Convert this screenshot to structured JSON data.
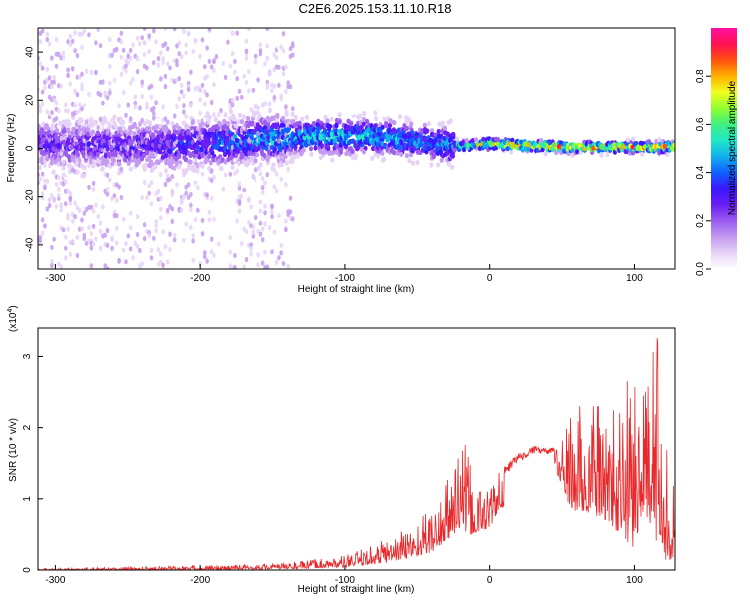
{
  "title": "C2E6.2025.153.11.10.R18",
  "colors": {
    "snr_line": "#e8282a",
    "colormap": [
      "#ffffff",
      "#e6d3f7",
      "#c49bf0",
      "#9b5bf0",
      "#6a1ef5",
      "#3a18ff",
      "#1060ff",
      "#10b0f0",
      "#20e8c8",
      "#40f080",
      "#90ff30",
      "#f0ff20",
      "#ffb000",
      "#ff5010",
      "#ff1050",
      "#ff10a0"
    ]
  },
  "chart_data": [
    {
      "type": "heatmap",
      "xlabel": "Height of straight line (km)",
      "ylabel": "Frequency (Hz)",
      "xlim": [
        -312,
        128
      ],
      "ylim": [
        -50,
        50
      ],
      "xticks": [
        -300,
        -200,
        -100,
        0,
        100
      ],
      "yticks": [
        -40,
        -20,
        0,
        20,
        40
      ],
      "colorbar": {
        "label": "Normalized spectral amplitude",
        "range": [
          0,
          1
        ],
        "ticks": [
          "0.0",
          "0.2",
          "0.4",
          "0.6",
          "0.8"
        ],
        "tick_values": [
          0,
          0.2,
          0.4,
          0.6,
          0.8
        ]
      },
      "ridge": {
        "x": [
          -312,
          -250,
          -200,
          -150,
          -120,
          -80,
          -50,
          -35,
          -20,
          0,
          30,
          60,
          100,
          128
        ],
        "center_freq_hz": [
          2,
          1,
          2,
          4,
          5,
          5,
          3,
          2,
          1,
          2,
          1,
          0.5,
          0.5,
          0.5
        ],
        "peak_amplitude": [
          0.33,
          0.35,
          0.42,
          0.55,
          0.58,
          0.58,
          0.52,
          0.5,
          0.65,
          0.9,
          0.92,
          0.93,
          0.93,
          0.93
        ]
      }
    },
    {
      "type": "line",
      "xlabel": "Height of straight line (km)",
      "ylabel": "SNR (10 * v/v)",
      "yscale_label": "(x10",
      "yscale_exp": "4",
      "xlim": [
        -312,
        128
      ],
      "ylim": [
        0,
        3.4
      ],
      "xticks": [
        -300,
        -200,
        -100,
        0,
        100
      ],
      "yticks": [
        0,
        1,
        2,
        3
      ],
      "envelope": {
        "x": [
          -312,
          -250,
          -200,
          -160,
          -130,
          -100,
          -80,
          -60,
          -40,
          -30,
          -20,
          -15,
          -10,
          0,
          10,
          20,
          30,
          40,
          45,
          50,
          55,
          60,
          70,
          80,
          90,
          100,
          105,
          110,
          115,
          118,
          122,
          128
        ],
        "upper": [
          0.02,
          0.04,
          0.06,
          0.08,
          0.12,
          0.2,
          0.35,
          0.55,
          0.85,
          1.2,
          2.0,
          1.6,
          1.2,
          1.2,
          1.45,
          1.65,
          1.75,
          1.7,
          1.75,
          1.8,
          2.1,
          2.3,
          2.3,
          2.3,
          2.2,
          3.1,
          2.4,
          2.6,
          3.4,
          2.8,
          2.0,
          1.0
        ],
        "lower": [
          0.0,
          0.0,
          0.0,
          0.01,
          0.02,
          0.04,
          0.08,
          0.15,
          0.25,
          0.4,
          0.6,
          0.5,
          0.5,
          0.6,
          0.9,
          1.1,
          1.3,
          1.4,
          1.4,
          1.2,
          0.9,
          0.8,
          0.8,
          0.7,
          0.5,
          0.3,
          0.8,
          0.7,
          0.4,
          0.5,
          0.1,
          0.2
        ]
      }
    }
  ]
}
